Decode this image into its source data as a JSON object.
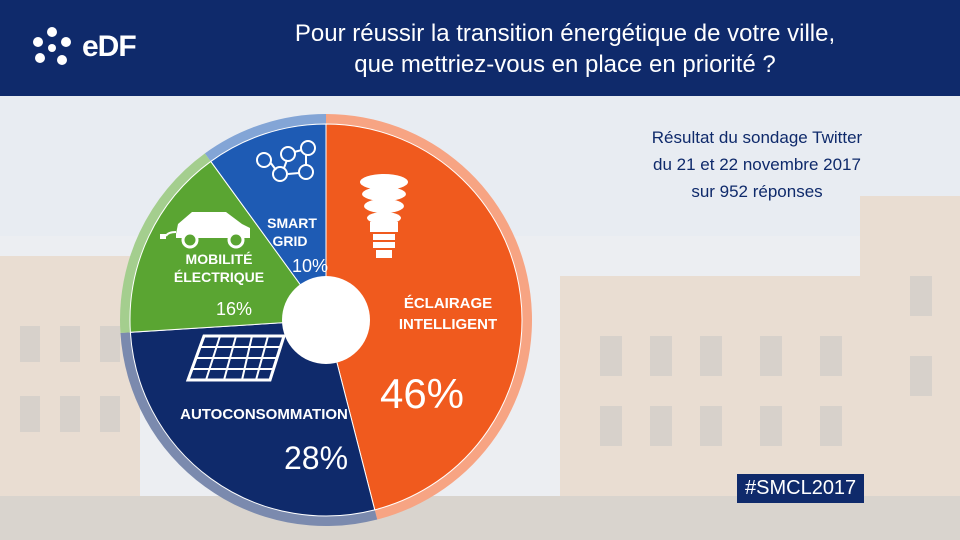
{
  "header": {
    "brand": "eDF",
    "question_line1": "Pour réussir la transition énergétique de votre ville,",
    "question_line2": "que mettriez-vous en place en priorité ?"
  },
  "source": {
    "line1": "Résultat du sondage Twitter",
    "line2": "du 21 et 22 novembre 2017",
    "line3": "sur 952 réponses"
  },
  "hashtag": "#SMCL2017",
  "colors": {
    "navy": "#0f2a6b",
    "orange": "#f05a1e",
    "green": "#5aa532",
    "blue": "#1e5bb4"
  },
  "chart_data": {
    "type": "pie",
    "donut": true,
    "slices": [
      {
        "label_lines": [
          "ÉCLAIRAGE",
          "INTELLIGENT"
        ],
        "value": 46,
        "value_label": "46%",
        "color": "#f05a1e",
        "icon": "light-bulb-icon"
      },
      {
        "label_lines": [
          "AUTOCONSOMMATION"
        ],
        "value": 28,
        "value_label": "28%",
        "color": "#0f2a6b",
        "icon": "solar-panel-icon"
      },
      {
        "label_lines": [
          "MOBILITÉ",
          "ÉLECTRIQUE"
        ],
        "value": 16,
        "value_label": "16%",
        "color": "#5aa532",
        "icon": "electric-car-icon"
      },
      {
        "label_lines": [
          "SMART",
          "GRID"
        ],
        "value": 10,
        "value_label": "10%",
        "color": "#1e5bb4",
        "icon": "network-house-icon"
      }
    ]
  }
}
